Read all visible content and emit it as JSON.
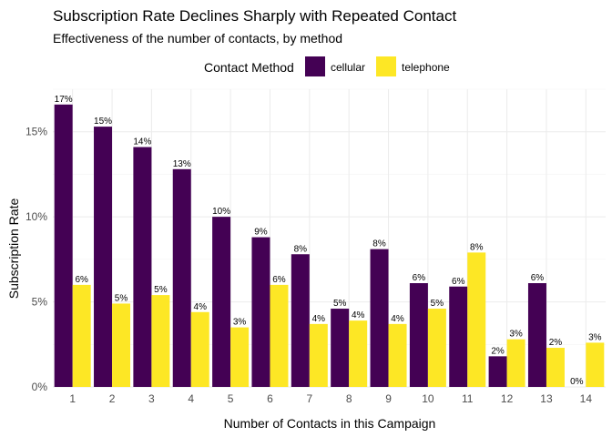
{
  "chart_data": {
    "type": "bar",
    "title": "Subscription Rate Declines Sharply with Repeated Contact",
    "subtitle": "Effectiveness of the number of contacts, by method",
    "xlabel": "Number of Contacts in this Campaign",
    "ylabel": "Subscription Rate",
    "legend_title": "Contact Method",
    "legend_position": "top",
    "grid": true,
    "categories": [
      "1",
      "2",
      "3",
      "4",
      "5",
      "6",
      "7",
      "8",
      "9",
      "10",
      "11",
      "12",
      "13",
      "14"
    ],
    "ylim": [
      0,
      0.175
    ],
    "yticks": [
      0,
      0.05,
      0.1,
      0.15
    ],
    "ytick_labels": [
      "0%",
      "5%",
      "10%",
      "15%"
    ],
    "series": [
      {
        "name": "cellular",
        "color": "#440154",
        "values": [
          0.166,
          0.153,
          0.141,
          0.128,
          0.1,
          0.088,
          0.078,
          0.046,
          0.081,
          0.061,
          0.059,
          0.018,
          0.061,
          0.0
        ],
        "labels": [
          "17%",
          "15%",
          "14%",
          "13%",
          "10%",
          "9%",
          "8%",
          "5%",
          "8%",
          "6%",
          "6%",
          "2%",
          "6%",
          "0%"
        ]
      },
      {
        "name": "telephone",
        "color": "#FDE725",
        "values": [
          0.06,
          0.049,
          0.054,
          0.044,
          0.035,
          0.06,
          0.037,
          0.039,
          0.037,
          0.046,
          0.079,
          0.028,
          0.023,
          0.026
        ],
        "labels": [
          "6%",
          "5%",
          "5%",
          "4%",
          "3%",
          "6%",
          "4%",
          "4%",
          "4%",
          "5%",
          "8%",
          "3%",
          "2%",
          "3%"
        ]
      }
    ]
  }
}
